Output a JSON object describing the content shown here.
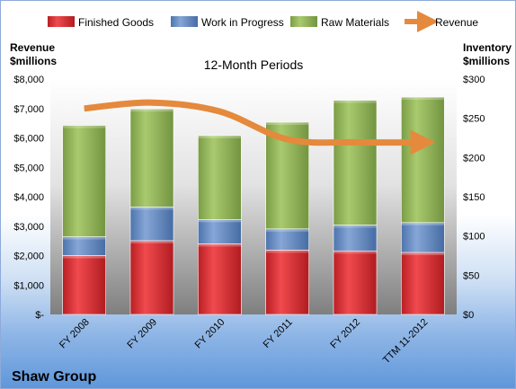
{
  "chart_data": {
    "type": "bar",
    "title": "12-Month Periods",
    "company": "Shaw Group",
    "left_axis_label": [
      "Revenue",
      "$millions"
    ],
    "right_axis_label": [
      "Inventory",
      "$millions"
    ],
    "categories": [
      "FY 2008",
      "FY 2009",
      "FY 2010",
      "FY 2011",
      "FY 2012",
      "TTM 11-2012"
    ],
    "stacked": true,
    "series": [
      {
        "name": "Finished Goods",
        "type": "bar",
        "axis": "right",
        "color": "#d9262b",
        "values": [
          75,
          94,
          90,
          82,
          81,
          79
        ]
      },
      {
        "name": "Work in Progress",
        "type": "bar",
        "axis": "right",
        "color": "#5b84c0",
        "values": [
          24,
          43,
          31,
          27,
          33,
          38
        ]
      },
      {
        "name": "Raw Materials",
        "type": "bar",
        "axis": "right",
        "color": "#8cb153",
        "values": [
          142,
          125,
          107,
          136,
          159,
          160
        ]
      },
      {
        "name": "Revenue",
        "type": "line",
        "axis": "left",
        "color": "#e5893c",
        "values": [
          7000,
          7200,
          6900,
          5950,
          5850,
          5850
        ]
      }
    ],
    "left_axis": {
      "min": 0,
      "max": 8000,
      "ticks": [
        "$-",
        "$1,000",
        "$2,000",
        "$3,000",
        "$4,000",
        "$5,000",
        "$6,000",
        "$7,000",
        "$8,000"
      ]
    },
    "right_axis": {
      "min": 0,
      "max": 300,
      "ticks": [
        "$0",
        "$50",
        "$100",
        "$150",
        "$200",
        "$250",
        "$300"
      ]
    },
    "legend_position": "top",
    "grid": false
  }
}
